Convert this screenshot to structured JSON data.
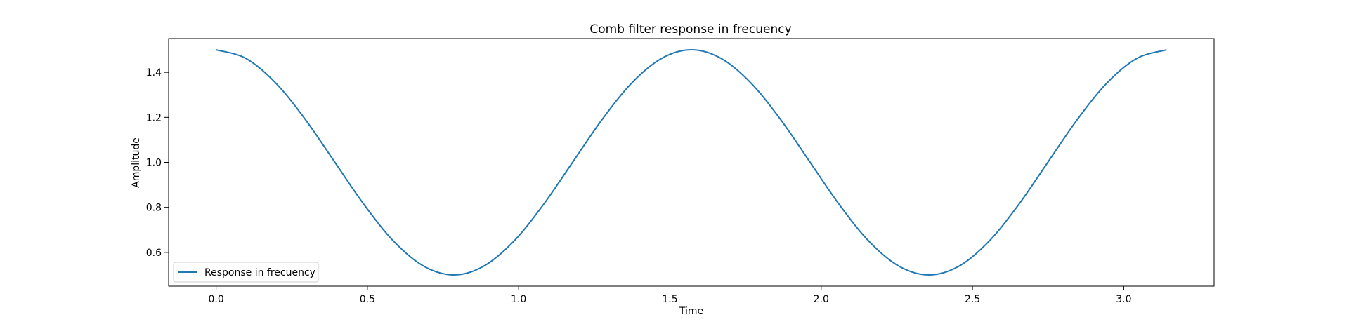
{
  "chart_data": {
    "type": "line",
    "title": "Comb filter response in frecuency",
    "xlabel": "Time",
    "ylabel": "Amplitude",
    "xlim": [
      -0.157,
      3.2987
    ],
    "ylim": [
      0.45,
      1.55
    ],
    "xticks": [
      0.0,
      0.5,
      1.0,
      1.5,
      2.0,
      2.5,
      3.0
    ],
    "xtick_labels": [
      "0.0",
      "0.5",
      "1.0",
      "1.5",
      "2.0",
      "2.5",
      "3.0"
    ],
    "yticks": [
      0.6,
      0.8,
      1.0,
      1.2,
      1.4
    ],
    "ytick_labels": [
      "0.6",
      "0.8",
      "1.0",
      "1.2",
      "1.4"
    ],
    "grid": false,
    "legend_position": "lower-left",
    "series": [
      {
        "name": "Response in frecuency",
        "color": "#1f77b4",
        "x": [
          0.0,
          0.0982,
          0.1963,
          0.2945,
          0.3927,
          0.4909,
          0.589,
          0.6872,
          0.7854,
          0.8836,
          0.9817,
          1.0799,
          1.1781,
          1.2763,
          1.3744,
          1.4726,
          1.5708,
          1.669,
          1.7671,
          1.8653,
          1.9635,
          2.0617,
          2.1598,
          2.258,
          2.3562,
          2.4544,
          2.5525,
          2.6507,
          2.7489,
          2.8471,
          2.9452,
          3.0434,
          3.1416
        ],
        "y": [
          1.5,
          1.4619,
          1.3536,
          1.1913,
          1.0,
          0.8087,
          0.6464,
          0.5381,
          0.5,
          0.5381,
          0.6464,
          0.8087,
          1.0,
          1.1913,
          1.3536,
          1.4619,
          1.5,
          1.4619,
          1.3536,
          1.1913,
          1.0,
          0.8087,
          0.6464,
          0.5381,
          0.5,
          0.5381,
          0.6464,
          0.8087,
          1.0,
          1.1913,
          1.3536,
          1.4619,
          1.5
        ]
      }
    ]
  }
}
